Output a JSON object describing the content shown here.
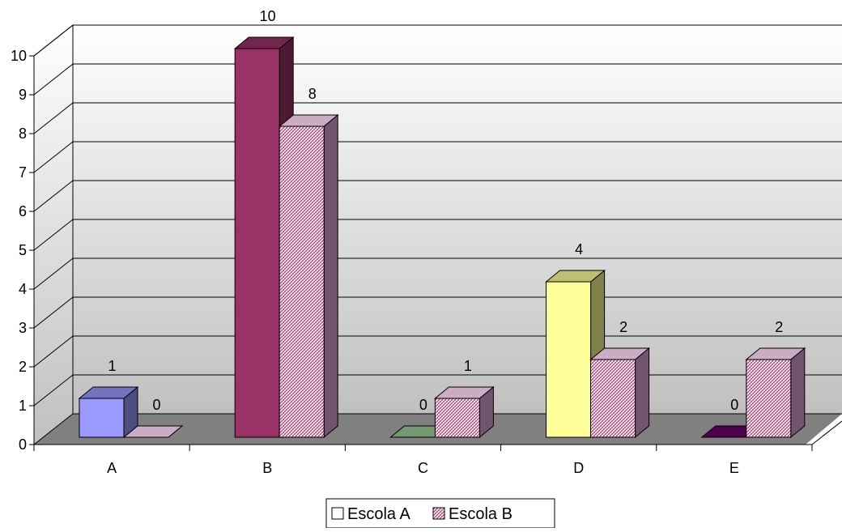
{
  "chart_data": {
    "type": "bar",
    "categories": [
      "A",
      "B",
      "C",
      "D",
      "E"
    ],
    "series": [
      {
        "name": "Escola A",
        "values": [
          1,
          10,
          0,
          4,
          0
        ]
      },
      {
        "name": "Escola B",
        "values": [
          0,
          8,
          1,
          2,
          2
        ]
      }
    ],
    "ylim": [
      0,
      10
    ],
    "yticks": [
      "0",
      "1",
      "2",
      "3",
      "4",
      "5",
      "6",
      "7",
      "8",
      "9",
      "10"
    ],
    "grid": true,
    "legend_position": "bottom",
    "three_d": true,
    "bar_colors": {
      "Escola A": [
        "#9999ff",
        "#993366",
        "#99cc99",
        "#ffff99",
        "#660066"
      ],
      "Escola B": [
        "#ccccff",
        "#ffccff",
        "#ccffcc",
        "#ffffcc",
        "#ff99ff"
      ]
    },
    "wall_color_top": "#ffffff",
    "wall_color_bottom": "#c0c0c0",
    "floor_color": "#808080"
  }
}
